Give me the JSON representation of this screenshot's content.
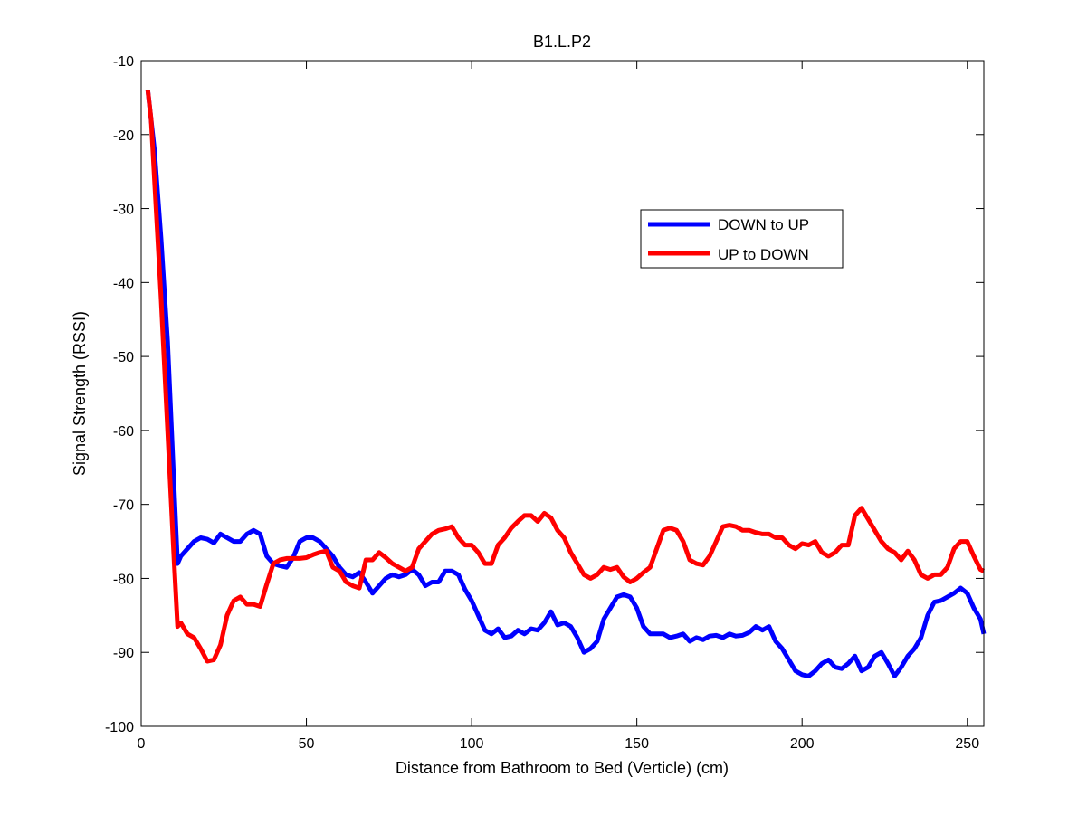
{
  "chart_data": {
    "type": "line",
    "title": "B1.L.P2",
    "xlabel": "Distance from Bathroom to Bed (Verticle)  (cm)",
    "ylabel": "Signal Strength (RSSI)",
    "xlim": [
      0,
      255
    ],
    "ylim": [
      -100,
      -10
    ],
    "xticks": [
      0,
      50,
      100,
      150,
      200,
      250
    ],
    "yticks": [
      -100,
      -90,
      -80,
      -70,
      -60,
      -50,
      -40,
      -30,
      -20,
      -10
    ],
    "grid": false,
    "legend_position": "upper-right-inset",
    "series": [
      {
        "name": "DOWN to UP",
        "color": "#0000ff",
        "x": [
          2,
          4,
          6,
          8,
          10,
          11,
          12,
          14,
          16,
          18,
          20,
          22,
          24,
          26,
          28,
          30,
          32,
          34,
          36,
          38,
          40,
          42,
          44,
          46,
          48,
          50,
          52,
          54,
          56,
          58,
          60,
          62,
          64,
          66,
          68,
          70,
          72,
          74,
          76,
          78,
          80,
          82,
          84,
          86,
          88,
          90,
          92,
          94,
          96,
          98,
          100,
          102,
          104,
          106,
          108,
          110,
          112,
          114,
          116,
          118,
          120,
          122,
          124,
          126,
          128,
          130,
          132,
          134,
          136,
          138,
          140,
          142,
          144,
          146,
          148,
          150,
          152,
          154,
          156,
          158,
          160,
          162,
          164,
          166,
          168,
          170,
          172,
          174,
          176,
          178,
          180,
          182,
          184,
          186,
          188,
          190,
          192,
          194,
          196,
          198,
          200,
          202,
          204,
          206,
          208,
          210,
          212,
          214,
          216,
          218,
          220,
          222,
          224,
          226,
          228,
          230,
          232,
          234,
          236,
          238,
          240,
          242,
          244,
          246,
          248,
          250,
          252,
          254,
          255
        ],
        "y": [
          -14,
          -22,
          -34,
          -48,
          -68,
          -78,
          -77,
          -76,
          -75,
          -74.5,
          -74.7,
          -75.2,
          -74,
          -74.5,
          -75,
          -75,
          -74,
          -73.5,
          -74,
          -77,
          -78,
          -78.3,
          -78.5,
          -77.2,
          -75,
          -74.5,
          -74.5,
          -75,
          -76,
          -77,
          -78.5,
          -79.5,
          -79.8,
          -79.2,
          -80.5,
          -82,
          -81,
          -80,
          -79.5,
          -79.8,
          -79.5,
          -78.8,
          -79.5,
          -81,
          -80.5,
          -80.5,
          -79,
          -79,
          -79.5,
          -81.5,
          -83,
          -85,
          -87,
          -87.5,
          -86.8,
          -88,
          -87.8,
          -87,
          -87.5,
          -86.8,
          -87,
          -86,
          -84.5,
          -86.3,
          -86,
          -86.5,
          -88,
          -90,
          -89.5,
          -88.5,
          -85.5,
          -84,
          -82.5,
          -82.2,
          -82.5,
          -84,
          -86.5,
          -87.5,
          -87.5,
          -87.5,
          -88,
          -87.8,
          -87.5,
          -88.5,
          -88,
          -88.3,
          -87.8,
          -87.7,
          -88,
          -87.5,
          -87.8,
          -87.7,
          -87.3,
          -86.5,
          -87,
          -86.5,
          -88.5,
          -89.5,
          -91,
          -92.5,
          -93,
          -93.2,
          -92.5,
          -91.5,
          -91,
          -92,
          -92.2,
          -91.5,
          -90.5,
          -92.5,
          -92,
          -90.5,
          -90,
          -91.5,
          -93.2,
          -92,
          -90.5,
          -89.5,
          -88,
          -85,
          -83.2,
          -83,
          -82.5,
          -82,
          -81.3,
          -82,
          -84,
          -85.5,
          -87.5
        ]
      },
      {
        "name": "UP to DOWN",
        "color": "#ff0000",
        "x": [
          2,
          3,
          4,
          6,
          8,
          10,
          11,
          12,
          14,
          16,
          18,
          20,
          22,
          24,
          26,
          28,
          30,
          32,
          34,
          36,
          38,
          40,
          42,
          44,
          46,
          48,
          50,
          52,
          54,
          56,
          58,
          60,
          62,
          64,
          66,
          68,
          70,
          72,
          74,
          76,
          78,
          80,
          82,
          84,
          86,
          88,
          90,
          92,
          94,
          96,
          98,
          100,
          102,
          104,
          106,
          108,
          110,
          112,
          114,
          116,
          118,
          120,
          122,
          124,
          126,
          128,
          130,
          132,
          134,
          136,
          138,
          140,
          142,
          144,
          146,
          148,
          150,
          152,
          154,
          156,
          158,
          160,
          162,
          164,
          166,
          168,
          170,
          172,
          174,
          176,
          178,
          180,
          182,
          184,
          186,
          188,
          190,
          192,
          194,
          196,
          198,
          200,
          202,
          204,
          206,
          208,
          210,
          212,
          214,
          216,
          218,
          220,
          222,
          224,
          226,
          228,
          230,
          232,
          234,
          236,
          238,
          240,
          242,
          244,
          246,
          248,
          250,
          252,
          254,
          255
        ],
        "y": [
          -14,
          -18,
          -26,
          -42,
          -60,
          -78,
          -86.5,
          -86,
          -87.5,
          -88,
          -89.5,
          -91.2,
          -91,
          -89,
          -85,
          -83,
          -82.5,
          -83.5,
          -83.5,
          -83.8,
          -80.8,
          -78,
          -77.5,
          -77.3,
          -77.3,
          -77.3,
          -77.2,
          -76.8,
          -76.5,
          -76.3,
          -78.5,
          -79,
          -80.5,
          -81,
          -81.3,
          -77.5,
          -77.5,
          -76.5,
          -77.2,
          -78,
          -78.5,
          -79,
          -78.5,
          -76,
          -75,
          -74,
          -73.5,
          -73.3,
          -73,
          -74.5,
          -75.5,
          -75.5,
          -76.5,
          -78,
          -78,
          -75.5,
          -74.5,
          -73.2,
          -72.3,
          -71.5,
          -71.5,
          -72.3,
          -71.2,
          -71.8,
          -73.5,
          -74.5,
          -76.5,
          -78,
          -79.5,
          -80,
          -79.5,
          -78.5,
          -78.8,
          -78.5,
          -79.8,
          -80.5,
          -80,
          -79.2,
          -78.5,
          -76,
          -73.5,
          -73.2,
          -73.5,
          -75,
          -77.5,
          -78,
          -78.2,
          -77,
          -75,
          -73,
          -72.8,
          -73,
          -73.5,
          -73.5,
          -73.8,
          -74,
          -74,
          -74.5,
          -74.5,
          -75.5,
          -76,
          -75.3,
          -75.5,
          -75,
          -76.5,
          -77,
          -76.5,
          -75.5,
          -75.5,
          -71.5,
          -70.5,
          -72,
          -73.5,
          -75,
          -76,
          -76.5,
          -77.5,
          -76.3,
          -77.5,
          -79.5,
          -80,
          -79.5,
          -79.5,
          -78.5,
          -76,
          -75,
          -75,
          -77,
          -78.8,
          -79
        ]
      }
    ]
  }
}
